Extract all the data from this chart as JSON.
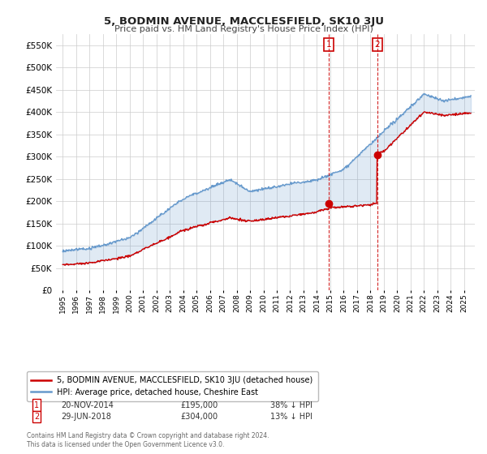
{
  "title": "5, BODMIN AVENUE, MACCLESFIELD, SK10 3JU",
  "subtitle": "Price paid vs. HM Land Registry's House Price Index (HPI)",
  "background_color": "#ffffff",
  "grid_color": "#cccccc",
  "hpi_color": "#6699cc",
  "price_color": "#cc0000",
  "sale1_year": 2014.9,
  "sale1_price": 195000,
  "sale2_year": 2018.5,
  "sale2_price": 304000,
  "ylim": [
    0,
    575000
  ],
  "xlim": [
    1994.5,
    2025.8
  ],
  "yticks": [
    0,
    50000,
    100000,
    150000,
    200000,
    250000,
    300000,
    350000,
    400000,
    450000,
    500000,
    550000
  ],
  "xticks": [
    1995,
    1996,
    1997,
    1998,
    1999,
    2000,
    2001,
    2002,
    2003,
    2004,
    2005,
    2006,
    2007,
    2008,
    2009,
    2010,
    2011,
    2012,
    2013,
    2014,
    2015,
    2016,
    2017,
    2018,
    2019,
    2020,
    2021,
    2022,
    2023,
    2024,
    2025
  ],
  "legend_label_red": "5, BODMIN AVENUE, MACCLESFIELD, SK10 3JU (detached house)",
  "legend_label_blue": "HPI: Average price, detached house, Cheshire East",
  "note1_num": "1",
  "note1_date": "20-NOV-2014",
  "note1_price": "£195,000",
  "note1_hpi": "38% ↓ HPI",
  "note2_num": "2",
  "note2_date": "29-JUN-2018",
  "note2_price": "£304,000",
  "note2_hpi": "13% ↓ HPI",
  "copyright": "Contains HM Land Registry data © Crown copyright and database right 2024.\nThis data is licensed under the Open Government Licence v3.0."
}
